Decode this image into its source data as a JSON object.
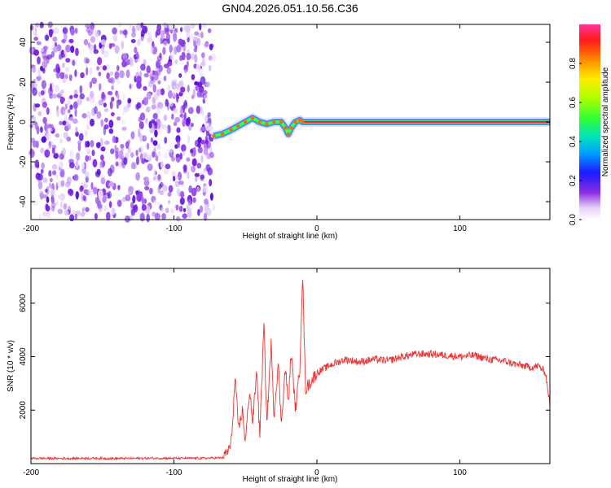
{
  "title": "GN04.2026.051.10.56.C36",
  "chart_data": [
    {
      "type": "heatmap",
      "xlabel": "Height of straight line (km)",
      "ylabel": "Frequency (Hz)",
      "xlim": [
        -200,
        163
      ],
      "ylim": [
        -49,
        49
      ],
      "xticks": [
        -200,
        -100,
        0,
        100
      ],
      "yticks": [
        -40,
        -20,
        0,
        20,
        40
      ],
      "colorbar": {
        "label": "Normalized spectral amplitude",
        "range": [
          0,
          1
        ],
        "ticks": [
          "0.0",
          "0.2",
          "0.4",
          "0.6",
          "0.8"
        ],
        "tick_values": [
          0,
          0.2,
          0.4,
          0.6,
          0.8
        ]
      },
      "noise_region_x": [
        -200,
        -72
      ],
      "signal_track": {
        "x": [
          -72,
          -66,
          -60,
          -55,
          -50,
          -45,
          -40,
          -35,
          -30,
          -25,
          -22,
          -20,
          -18,
          -15,
          -12,
          -10,
          -6,
          0,
          50,
          100,
          163
        ],
        "freq": [
          -7,
          -6,
          -4,
          -2,
          0,
          2,
          0,
          -1,
          0,
          0,
          -3,
          -6,
          -3,
          0,
          1,
          0,
          0,
          0,
          0,
          0,
          0
        ]
      }
    },
    {
      "type": "line",
      "xlabel": "Height of straight line (km)",
      "ylabel": "SNR (10 * v/v)",
      "xlim": [
        -200,
        163
      ],
      "ylim": [
        0,
        7300
      ],
      "xticks": [
        -200,
        -100,
        0,
        100
      ],
      "yticks": [
        2000,
        4000,
        6000
      ],
      "series": [
        {
          "name": "SNR",
          "color": "#ee3333",
          "x": [
            -200,
            -180,
            -160,
            -140,
            -120,
            -100,
            -80,
            -65,
            -60,
            -57,
            -55,
            -52,
            -50,
            -47,
            -45,
            -42,
            -40,
            -37,
            -35,
            -32,
            -30,
            -27,
            -25,
            -22,
            -20,
            -18,
            -15,
            -12,
            -10,
            -8,
            -5,
            0,
            10,
            20,
            30,
            40,
            50,
            60,
            70,
            80,
            90,
            100,
            110,
            120,
            130,
            140,
            150,
            155,
            160,
            163
          ],
          "y": [
            200,
            190,
            200,
            190,
            200,
            200,
            200,
            220,
            700,
            3300,
            1200,
            2000,
            800,
            2800,
            1500,
            3500,
            1000,
            5200,
            1500,
            4500,
            1800,
            3800,
            1500,
            3600,
            2200,
            4200,
            2000,
            3500,
            7200,
            2800,
            3000,
            3400,
            3700,
            3900,
            3800,
            3900,
            3850,
            4000,
            4100,
            4100,
            4050,
            4000,
            4050,
            3900,
            3850,
            3700,
            3600,
            3650,
            3400,
            2200
          ]
        }
      ]
    }
  ]
}
